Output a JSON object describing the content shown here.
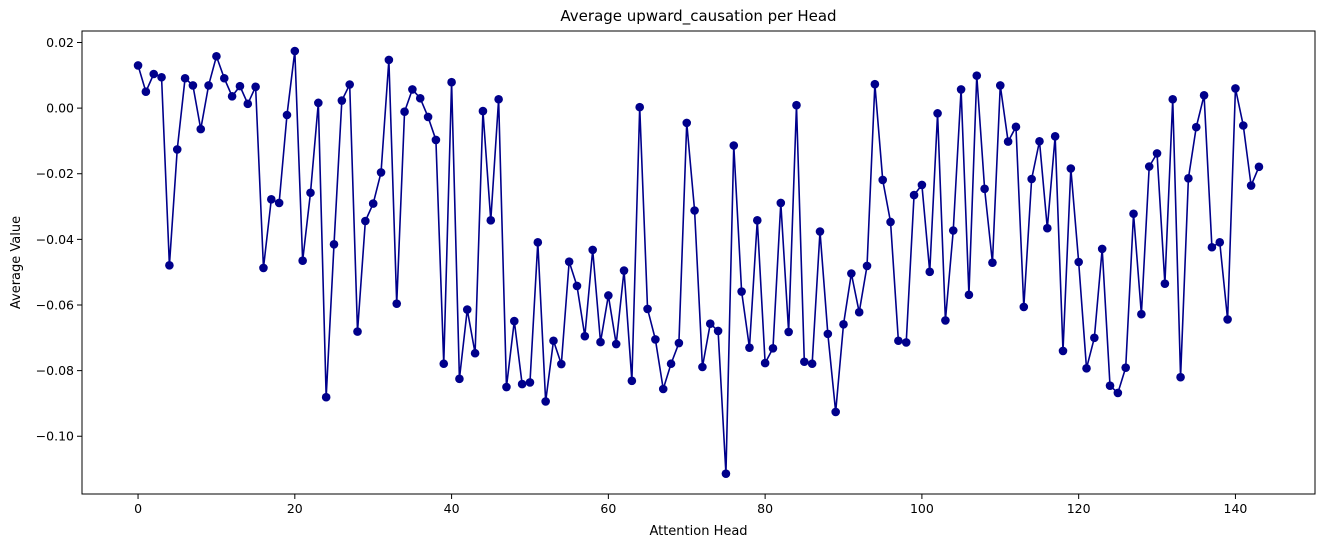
{
  "chart_data": {
    "type": "line",
    "title": "Average upward_causation per Head",
    "xlabel": "Attention Head",
    "ylabel": "Average Value",
    "xlim": [
      -7.15,
      150.15
    ],
    "ylim": [
      -0.1176,
      0.0235
    ],
    "xticks": [
      0,
      20,
      40,
      60,
      80,
      100,
      120,
      140
    ],
    "yticks": [
      0.02,
      0.0,
      -0.02,
      -0.04,
      -0.06,
      -0.08,
      -0.1
    ],
    "ytick_labels": [
      "0.02",
      "0.00",
      "−0.02",
      "−0.04",
      "−0.06",
      "−0.08",
      "−0.10"
    ],
    "grid": false,
    "line_color": "#00008b",
    "marker": "circle",
    "series": [
      {
        "x": [
          0,
          1,
          2,
          3,
          4,
          5,
          6,
          7,
          8,
          9,
          10,
          11,
          12,
          13,
          14,
          15,
          16,
          17,
          18,
          19,
          20,
          21,
          22,
          23,
          24,
          25,
          26,
          27,
          28,
          29,
          30,
          31,
          32,
          33,
          34,
          35,
          36,
          37,
          38,
          39,
          40,
          41,
          42,
          43,
          44,
          45,
          46,
          47,
          48,
          49,
          50,
          51,
          52,
          53,
          54,
          55,
          56,
          57,
          58,
          59,
          60,
          61,
          62,
          63,
          64,
          65,
          66,
          67,
          68,
          69,
          70,
          71,
          72,
          73,
          74,
          75,
          76,
          77,
          78,
          79,
          80,
          81,
          82,
          83,
          84,
          85,
          86,
          87,
          88,
          89,
          90,
          91,
          92,
          93,
          94,
          95,
          96,
          97,
          98,
          99,
          100,
          101,
          102,
          103,
          104,
          105,
          106,
          107,
          108,
          109,
          110,
          111,
          112,
          113,
          114,
          115,
          116,
          117,
          118,
          119,
          120,
          121,
          122,
          123,
          124,
          125,
          126,
          127,
          128,
          129,
          130,
          131,
          132,
          133,
          134,
          135,
          136,
          137,
          138,
          139,
          140,
          141,
          142,
          143
        ],
        "values": [
          0.013,
          0.005,
          0.0104,
          0.0094,
          -0.0479,
          -0.0126,
          0.0091,
          0.0069,
          -0.0064,
          0.0069,
          0.0158,
          0.0091,
          0.0036,
          0.0067,
          0.0013,
          0.0065,
          -0.0487,
          -0.0278,
          -0.0289,
          -0.0021,
          0.0174,
          -0.0465,
          -0.0258,
          0.0016,
          -0.0881,
          -0.0415,
          0.0023,
          0.0072,
          -0.0681,
          -0.0344,
          -0.0291,
          -0.0196,
          0.0147,
          -0.0596,
          -0.0011,
          0.0057,
          0.003,
          -0.0027,
          -0.0097,
          -0.0779,
          0.0079,
          -0.0825,
          -0.0614,
          -0.0747,
          -0.0009,
          -0.0342,
          0.0027,
          -0.085,
          -0.0649,
          -0.0841,
          -0.0836,
          -0.0409,
          -0.0894,
          -0.0709,
          -0.078,
          -0.0468,
          -0.0542,
          -0.0695,
          -0.0432,
          -0.0713,
          -0.0571,
          -0.0719,
          -0.0495,
          -0.0831,
          0.0003,
          -0.0612,
          -0.0705,
          -0.0856,
          -0.0779,
          -0.0716,
          -0.0045,
          -0.0312,
          -0.0789,
          -0.0657,
          -0.0679,
          -0.1114,
          -0.0114,
          -0.0559,
          -0.073,
          -0.0342,
          -0.0777,
          -0.0732,
          -0.0289,
          -0.0682,
          0.0009,
          -0.0773,
          -0.0779,
          -0.0376,
          -0.0688,
          -0.0926,
          -0.0659,
          -0.0504,
          -0.0622,
          -0.0481,
          0.0073,
          -0.0219,
          -0.0347,
          -0.0709,
          -0.0714,
          -0.0265,
          -0.0234,
          -0.0499,
          -0.0016,
          -0.0647,
          -0.0373,
          0.0057,
          -0.0569,
          0.0099,
          -0.0246,
          -0.0471,
          0.0069,
          -0.0102,
          -0.0057,
          -0.0606,
          -0.0216,
          -0.0101,
          -0.0366,
          -0.0086,
          -0.074,
          -0.0184,
          -0.0469,
          -0.0793,
          -0.07,
          -0.0429,
          -0.0846,
          -0.0868,
          -0.0791,
          -0.0322,
          -0.0628,
          -0.0178,
          -0.0138,
          -0.0535,
          0.0027,
          -0.082,
          -0.0214,
          -0.0058,
          0.0039,
          -0.0424,
          -0.0409,
          -0.0644,
          0.006,
          -0.0053,
          -0.0236,
          -0.0179
        ]
      }
    ]
  }
}
